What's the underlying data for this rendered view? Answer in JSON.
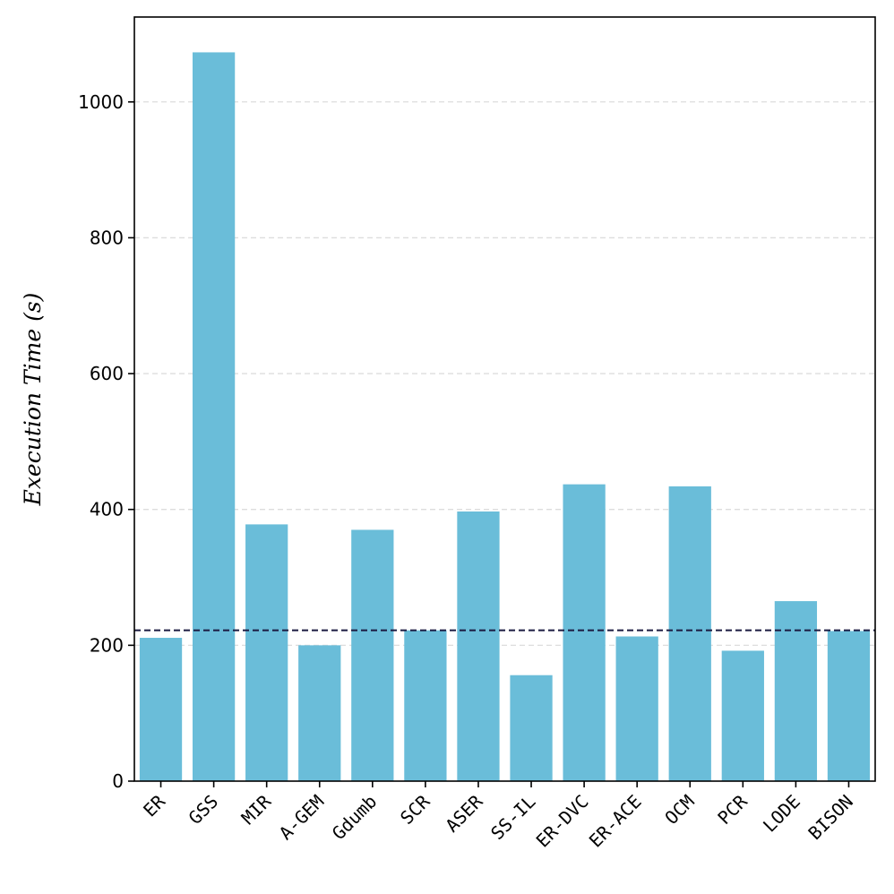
{
  "chart_data": {
    "type": "bar",
    "title": "",
    "xlabel": "",
    "ylabel": "Execution Time (s)",
    "categories": [
      "ER",
      "GSS",
      "MIR",
      "A-GEM",
      "Gdumb",
      "SCR",
      "ASER",
      "SS-IL",
      "ER-DVC",
      "ER-ACE",
      "OCM",
      "PCR",
      "LODE",
      "BISON"
    ],
    "values": [
      211,
      1073,
      378,
      200,
      370,
      222,
      397,
      156,
      437,
      213,
      434,
      192,
      265,
      221
    ],
    "reference_line": 222,
    "ylim": [
      0,
      1125
    ],
    "yticks": [
      0,
      200,
      400,
      600,
      800,
      1000
    ],
    "grid": "y-dashed",
    "bar_color": "#6abdd9",
    "reference_line_color": "#1a1a40"
  }
}
